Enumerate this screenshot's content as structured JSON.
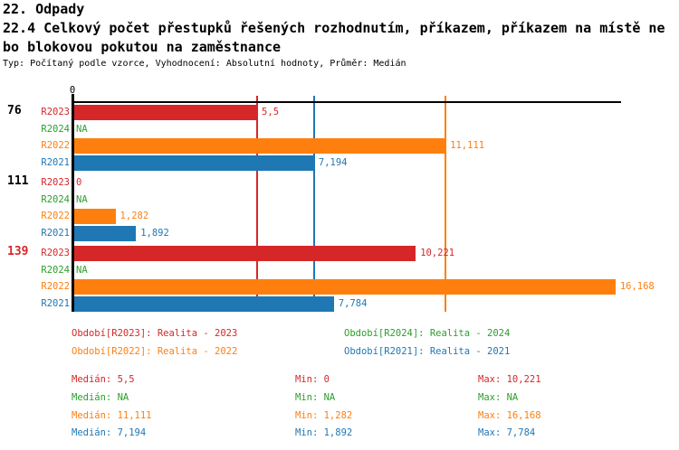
{
  "header": {
    "chapter": "22. Odpady",
    "title_line1": "22.4 Celkový počet přestupků řešených rozhodnutím, příkazem, příkazem na místě ne",
    "title_line2": "bo blokovou pokutou na zaměstnance",
    "meta": "Typ: Počítaný podle vzorce, Vyhodnocení: Absolutní hodnoty, Průměr: Medián"
  },
  "colors": {
    "r2023": "#d62728",
    "r2024": "#2ca02c",
    "r2022": "#ff7f0e",
    "r2021": "#1f77b4",
    "axis": "#000000"
  },
  "chart_data": {
    "type": "bar",
    "orientation": "horizontal",
    "title": "22.4 Celkový počet přestupků řešených rozhodnutím, příkazem, příkazem na místě nebo blokovou pokutou na zaměstnance",
    "value_axis": {
      "tick_label": "0",
      "min": 0,
      "max_estimate": 16.33,
      "grid": false
    },
    "groups": [
      {
        "label": "76",
        "label_color": "#000000",
        "bars": [
          {
            "series": "R2023",
            "value": 5.5,
            "label": "5,5",
            "color": "#d62728"
          },
          {
            "series": "R2024",
            "value": null,
            "label": "NA",
            "color": "#2ca02c"
          },
          {
            "series": "R2022",
            "value": 11.111,
            "label": "11,111",
            "color": "#ff7f0e"
          },
          {
            "series": "R2021",
            "value": 7.194,
            "label": "7,194",
            "color": "#1f77b4"
          }
        ]
      },
      {
        "label": "111",
        "label_color": "#000000",
        "bars": [
          {
            "series": "R2023",
            "value": 0,
            "label": "0",
            "color": "#d62728"
          },
          {
            "series": "R2024",
            "value": null,
            "label": "NA",
            "color": "#2ca02c"
          },
          {
            "series": "R2022",
            "value": 1.282,
            "label": "1,282",
            "color": "#ff7f0e"
          },
          {
            "series": "R2021",
            "value": 1.892,
            "label": "1,892",
            "color": "#1f77b4"
          }
        ]
      },
      {
        "label": "139",
        "label_color": "#d62728",
        "bars": [
          {
            "series": "R2023",
            "value": 10.221,
            "label": "10,221",
            "color": "#d62728"
          },
          {
            "series": "R2024",
            "value": null,
            "label": "NA",
            "color": "#2ca02c"
          },
          {
            "series": "R2022",
            "value": 16.168,
            "label": "16,168",
            "color": "#ff7f0e"
          },
          {
            "series": "R2021",
            "value": 7.784,
            "label": "7,784",
            "color": "#1f77b4"
          }
        ]
      }
    ],
    "median_lines": [
      {
        "series": "R2023",
        "value": 5.5,
        "color": "#d62728"
      },
      {
        "series": "R2021",
        "value": 7.194,
        "color": "#1f77b4"
      },
      {
        "series": "R2022",
        "value": 11.111,
        "color": "#ff7f0e"
      }
    ]
  },
  "legend": {
    "items": [
      {
        "text": "Období[R2023]: Realita - 2023",
        "color": "#d62728"
      },
      {
        "text": "Období[R2024]: Realita - 2024",
        "color": "#2ca02c"
      },
      {
        "text": "Období[R2022]: Realita - 2022",
        "color": "#ff7f0e"
      },
      {
        "text": "Období[R2021]: Realita - 2021",
        "color": "#1f77b4"
      }
    ]
  },
  "stats": {
    "rows": [
      {
        "series": "R2023",
        "color": "#d62728",
        "median": "Medián: 5,5",
        "min": "Min: 0",
        "max": "Max: 10,221"
      },
      {
        "series": "R2024",
        "color": "#2ca02c",
        "median": "Medián: NA",
        "min": "Min: NA",
        "max": "Max: NA"
      },
      {
        "series": "R2022",
        "color": "#ff7f0e",
        "median": "Medián: 11,111",
        "min": "Min: 1,282",
        "max": "Max: 16,168"
      },
      {
        "series": "R2021",
        "color": "#1f77b4",
        "median": "Medián: 7,194",
        "min": "Min: 1,892",
        "max": "Max: 7,784"
      }
    ]
  }
}
